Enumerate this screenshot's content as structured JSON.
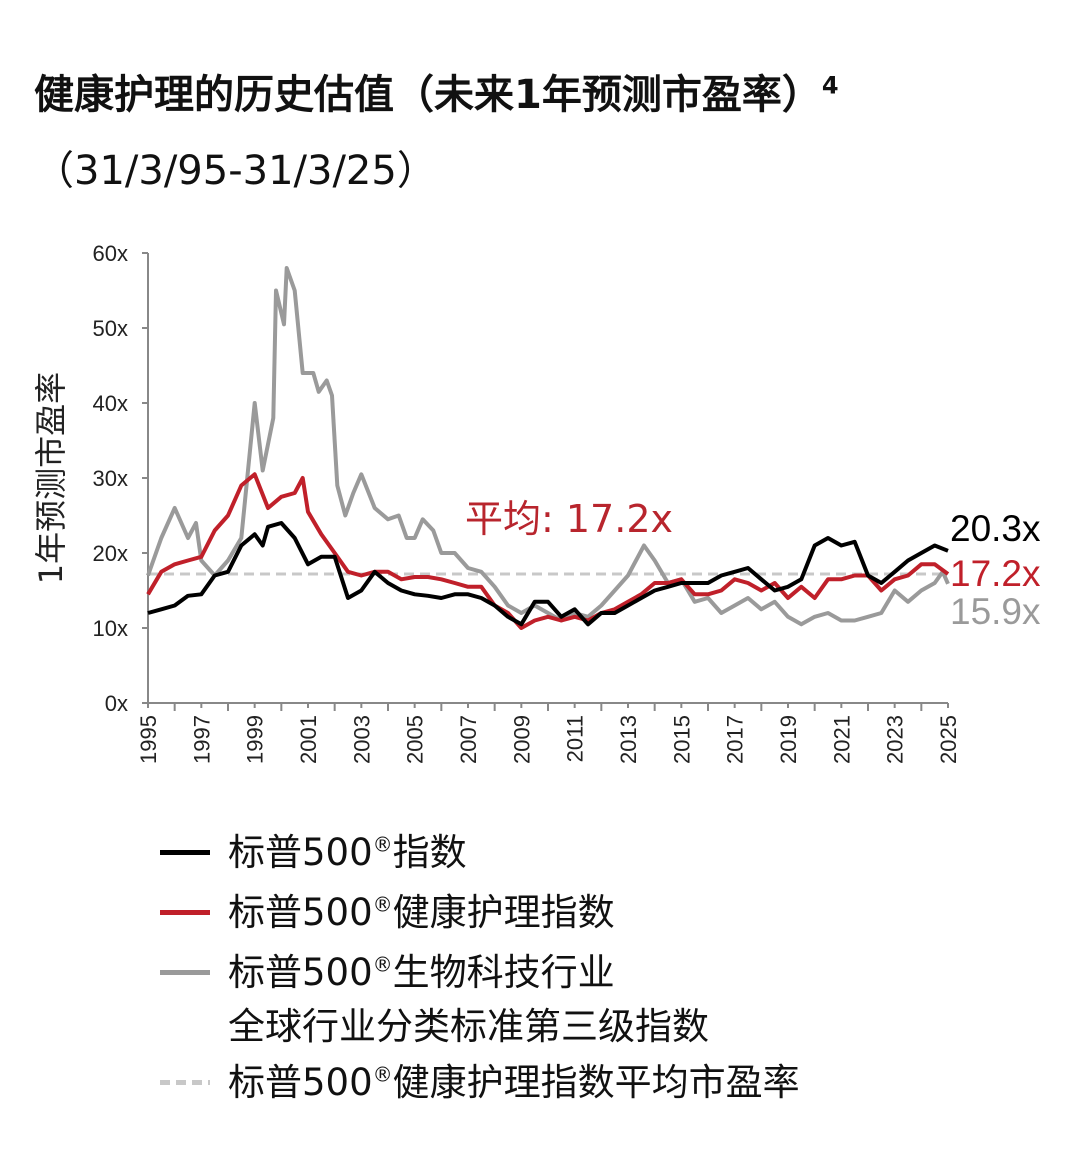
{
  "chart_data": {
    "type": "line",
    "title": "健康护理的历史估值（未来1年预测市盈率）",
    "title_footnote": "4",
    "subtitle": "（31/3/95-31/3/25）",
    "ylabel": "1年预测市盈率",
    "xlabel": "",
    "xlim": [
      1995,
      2025
    ],
    "ylim": [
      0,
      60
    ],
    "x_ticks": [
      "1995",
      "1997",
      "1999",
      "2001",
      "2003",
      "2005",
      "2007",
      "2009",
      "2011",
      "2013",
      "2015",
      "2017",
      "2019",
      "2021",
      "2023",
      "2025"
    ],
    "y_ticks": [
      "0x",
      "10x",
      "20x",
      "30x",
      "40x",
      "50x",
      "60x"
    ],
    "grid": false,
    "legend_position": "bottom",
    "annotation": "平均: 17.2x",
    "average": 17.2,
    "series": [
      {
        "name": "标普500®指数",
        "legend": "标普500",
        "legend_suffix": "指数",
        "color": "#000000",
        "end_label": "20.3x",
        "x": [
          1995,
          1995.5,
          1996,
          1996.5,
          1997,
          1997.5,
          1998,
          1998.5,
          1999,
          1999.3,
          1999.5,
          2000,
          2000.5,
          2001,
          2001.5,
          2002,
          2002.5,
          2003,
          2003.5,
          2004,
          2004.5,
          2005,
          2005.5,
          2006,
          2006.5,
          2007,
          2007.5,
          2008,
          2008.5,
          2009,
          2009.5,
          2010,
          2010.5,
          2011,
          2011.5,
          2012,
          2012.5,
          2013,
          2013.5,
          2014,
          2014.5,
          2015,
          2015.5,
          2016,
          2016.5,
          2017,
          2017.5,
          2018,
          2018.5,
          2019,
          2019.5,
          2020,
          2020.5,
          2021,
          2021.5,
          2022,
          2022.5,
          2023,
          2023.5,
          2024,
          2024.5,
          2025
        ],
        "y": [
          12,
          12.5,
          13,
          14.3,
          14.5,
          17,
          17.5,
          21,
          22.5,
          21,
          23.5,
          24,
          22,
          18.5,
          19.5,
          19.5,
          14,
          15,
          17.5,
          16,
          15,
          14.5,
          14.3,
          14,
          14.5,
          14.5,
          14,
          13,
          11.5,
          10.5,
          13.5,
          13.5,
          11.5,
          12.5,
          10.5,
          12,
          12,
          13,
          14,
          15,
          15.5,
          16,
          16,
          16,
          17,
          17.5,
          18,
          16.5,
          15,
          15.5,
          16.5,
          21,
          22,
          21,
          21.5,
          17,
          16,
          17.5,
          19,
          20,
          21,
          20.3
        ]
      },
      {
        "name": "标普500®健康护理指数",
        "legend": "标普500",
        "legend_suffix": "健康护理指数",
        "color": "#c0202a",
        "end_label": "17.2x",
        "x": [
          1995,
          1995.5,
          1996,
          1996.5,
          1997,
          1997.5,
          1998,
          1998.5,
          1999,
          1999.5,
          2000,
          2000.5,
          2000.8,
          2001,
          2001.5,
          2002,
          2002.5,
          2003,
          2003.5,
          2004,
          2004.5,
          2005,
          2005.5,
          2006,
          2006.5,
          2007,
          2007.5,
          2008,
          2008.5,
          2009,
          2009.5,
          2010,
          2010.5,
          2011,
          2011.5,
          2012,
          2012.5,
          2013,
          2013.5,
          2014,
          2014.5,
          2015,
          2015.5,
          2016,
          2016.5,
          2017,
          2017.5,
          2018,
          2018.5,
          2019,
          2019.5,
          2020,
          2020.5,
          2021,
          2021.5,
          2022,
          2022.5,
          2023,
          2023.5,
          2024,
          2024.5,
          2025
        ],
        "y": [
          14.5,
          17.5,
          18.5,
          19,
          19.5,
          23,
          25,
          29,
          30.5,
          26,
          27.5,
          28,
          30,
          25.5,
          22.5,
          20,
          17.5,
          17,
          17.5,
          17.5,
          16.5,
          16.8,
          16.8,
          16.5,
          16,
          15.5,
          15.5,
          13,
          12,
          10,
          11,
          11.5,
          11,
          11.5,
          11,
          12,
          12.5,
          13.5,
          14.5,
          16,
          16,
          16.5,
          14.5,
          14.5,
          15,
          16.5,
          16,
          15,
          16,
          14,
          15.5,
          14,
          16.5,
          16.5,
          17,
          17,
          15,
          16.5,
          17,
          18.5,
          18.5,
          17.2
        ]
      },
      {
        "name": "标普500®生物科技行业全球行业分类标准第三级指数",
        "legend": "标普500",
        "legend_suffix": "生物科技行业",
        "legend_line2": "全球行业分类标准第三级指数",
        "color": "#9a9a9a",
        "end_label": "15.9x",
        "x": [
          1995,
          1995.5,
          1996,
          1996.5,
          1996.8,
          1997,
          1997.5,
          1998,
          1998.5,
          1999,
          1999.3,
          1999.7,
          1999.8,
          2000.1,
          2000.2,
          2000.5,
          2000.8,
          2001.2,
          2001.4,
          2001.7,
          2001.9,
          2002.1,
          2002.4,
          2002.7,
          2003,
          2003.5,
          2004,
          2004.4,
          2004.7,
          2005,
          2005.3,
          2005.7,
          2006,
          2006.5,
          2007,
          2007.5,
          2008,
          2008.5,
          2009,
          2009.5,
          2010,
          2010.5,
          2011,
          2011.5,
          2012,
          2012.5,
          2013,
          2013.3,
          2013.6,
          2014,
          2014.5,
          2015,
          2015.5,
          2016,
          2016.5,
          2017,
          2017.5,
          2018,
          2018.5,
          2019,
          2019.5,
          2020,
          2020.5,
          2021,
          2021.5,
          2022,
          2022.5,
          2023,
          2023.5,
          2024,
          2024.5,
          2024.8,
          2025
        ],
        "y": [
          17,
          22,
          26,
          22,
          24,
          19,
          17,
          19,
          22,
          40,
          31,
          38,
          55,
          50.5,
          58,
          55,
          44,
          44,
          41.5,
          43,
          41,
          29,
          25,
          28,
          30.5,
          26,
          24.5,
          25,
          22,
          22,
          24.5,
          23,
          20,
          20,
          18,
          17.5,
          15.5,
          13,
          12,
          13,
          12,
          11,
          12,
          11.5,
          13,
          15,
          17,
          19,
          21,
          19,
          16,
          16.5,
          13.5,
          14,
          12,
          13,
          14,
          12.5,
          13.5,
          11.5,
          10.5,
          11.5,
          12,
          11,
          11,
          11.5,
          12,
          15,
          13.5,
          15,
          16,
          17.5,
          15.9
        ]
      },
      {
        "name": "标普500®健康护理指数平均市盈率",
        "legend": "标普500",
        "legend_suffix": "健康护理指数平均市盈率",
        "color": "#c8c8c8",
        "dashed": true
      }
    ]
  }
}
